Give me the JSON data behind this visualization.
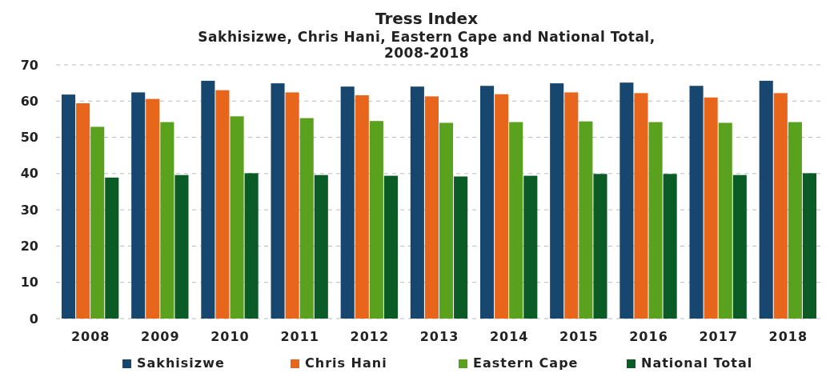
{
  "chart_data": {
    "type": "bar",
    "title": "Tress Index",
    "subtitle": "Sakhisizwe, Chris Hani, Eastern Cape and National Total, 2008-2018",
    "categories": [
      "2008",
      "2009",
      "2010",
      "2011",
      "2012",
      "2013",
      "2014",
      "2015",
      "2016",
      "2017",
      "2018"
    ],
    "series": [
      {
        "name": "Sakhisizwe",
        "color": "#17466e",
        "values": [
          61.8,
          62.4,
          65.6,
          64.9,
          64.0,
          64.0,
          64.2,
          64.9,
          65.1,
          64.2,
          65.6
        ]
      },
      {
        "name": "Chris Hani",
        "color": "#e8661c",
        "values": [
          59.4,
          60.6,
          63.0,
          62.4,
          61.6,
          61.3,
          61.9,
          62.4,
          62.2,
          61.0,
          62.2
        ]
      },
      {
        "name": "Eastern Cape",
        "color": "#5aa11e",
        "values": [
          52.9,
          54.2,
          55.8,
          55.3,
          54.5,
          54.0,
          54.2,
          54.4,
          54.2,
          54.0,
          54.2
        ]
      },
      {
        "name": "National Total",
        "color": "#0b5b27",
        "values": [
          38.9,
          39.6,
          40.1,
          39.6,
          39.4,
          39.2,
          39.4,
          39.9,
          39.9,
          39.6,
          40.1
        ]
      }
    ],
    "ylim": [
      0,
      70
    ],
    "yticks": [
      0,
      10,
      20,
      30,
      40,
      50,
      60,
      70
    ],
    "grid": "y",
    "legend": "bottom"
  }
}
